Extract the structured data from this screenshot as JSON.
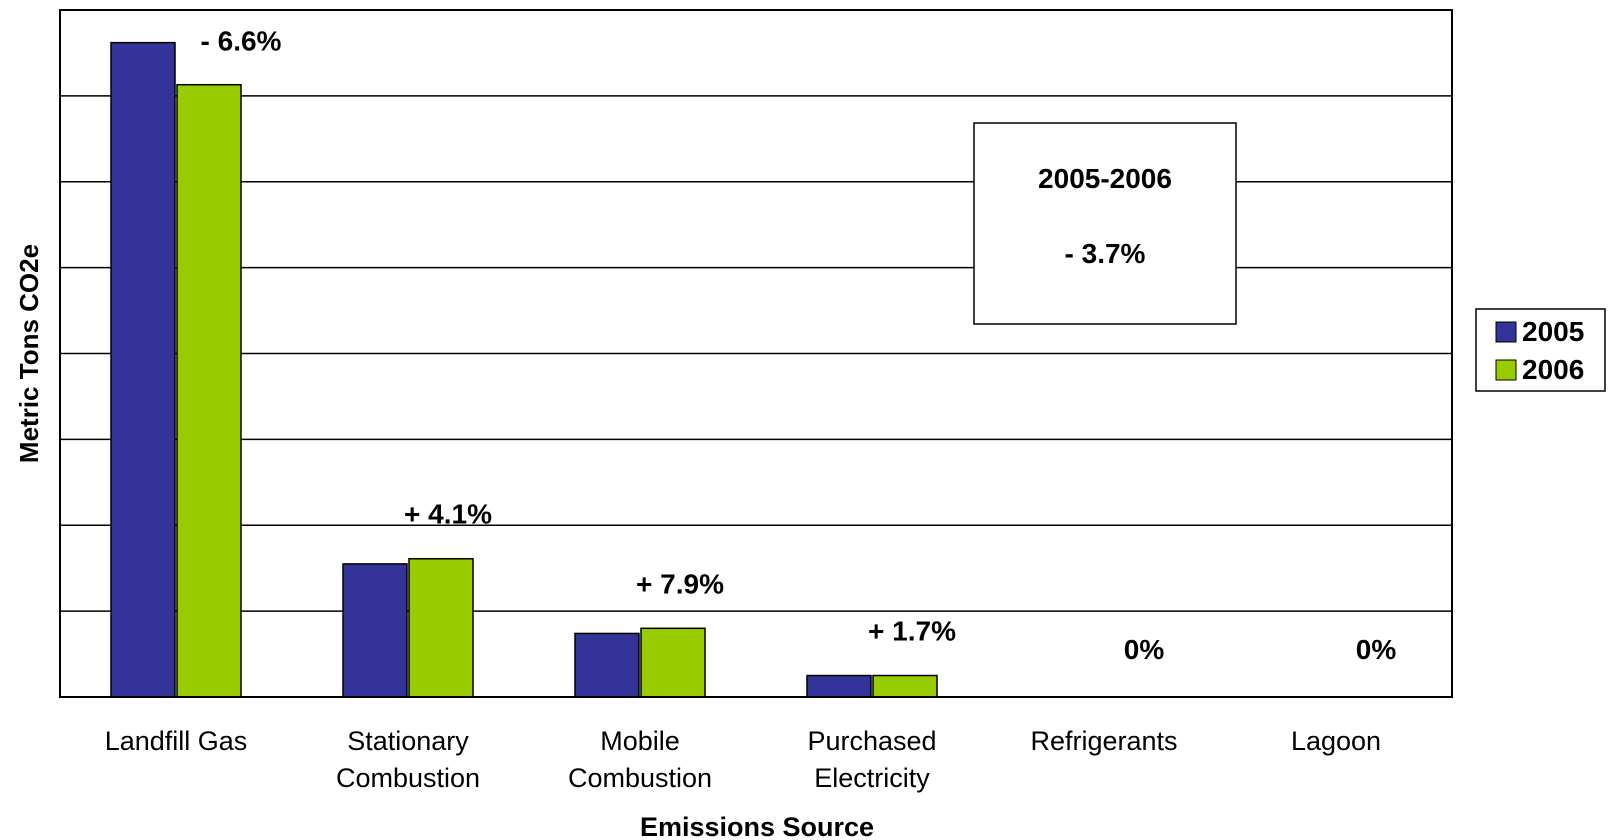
{
  "chart_data": {
    "type": "bar",
    "title": "",
    "xlabel": "Emissions Source",
    "ylabel": "Metric Tons CO2e",
    "ylim": [
      0,
      8
    ],
    "grid": true,
    "legend_position": "right",
    "categories": [
      [
        "Landfill Gas"
      ],
      [
        "Stationary",
        "Combustion"
      ],
      [
        "Mobile",
        "Combustion"
      ],
      [
        "Purchased",
        "Electricity"
      ],
      [
        "Refrigerants"
      ],
      [
        "Lagoon"
      ]
    ],
    "series": [
      {
        "name": "2005",
        "color": "#333399",
        "values": [
          7.62,
          1.55,
          0.74,
          0.25,
          0,
          0
        ]
      },
      {
        "name": "2006",
        "color": "#99CC00",
        "values": [
          7.13,
          1.61,
          0.8,
          0.25,
          0,
          0
        ]
      }
    ],
    "change_labels": [
      "- 6.6%",
      "+ 4.1%",
      "+ 7.9%",
      "+ 1.7%",
      "0%",
      "0%"
    ],
    "annotation_box": {
      "line1": "2005-2006",
      "line2": "- 3.7%"
    }
  }
}
